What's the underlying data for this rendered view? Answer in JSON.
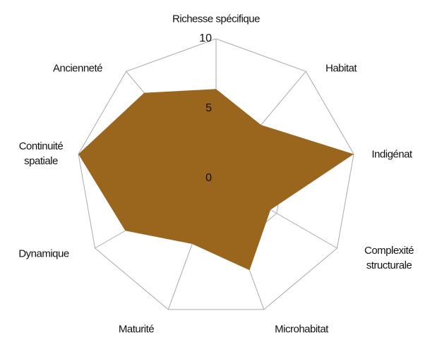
{
  "chart_data": {
    "type": "radar",
    "categories": [
      "Richesse spécifique",
      "Habitat",
      "Indigénat",
      "Complexité\nstructurale",
      "Microhabitat",
      "Maturité",
      "Dynamique",
      "Continuité\nspatiale",
      "Ancienneté"
    ],
    "values": [
      6.4,
      5,
      10,
      4.5,
      7,
      5,
      7.5,
      10,
      8
    ],
    "color": "#9a661e",
    "ylim": [
      0,
      10
    ],
    "yticks": [
      0,
      5,
      10
    ],
    "grid": true
  }
}
